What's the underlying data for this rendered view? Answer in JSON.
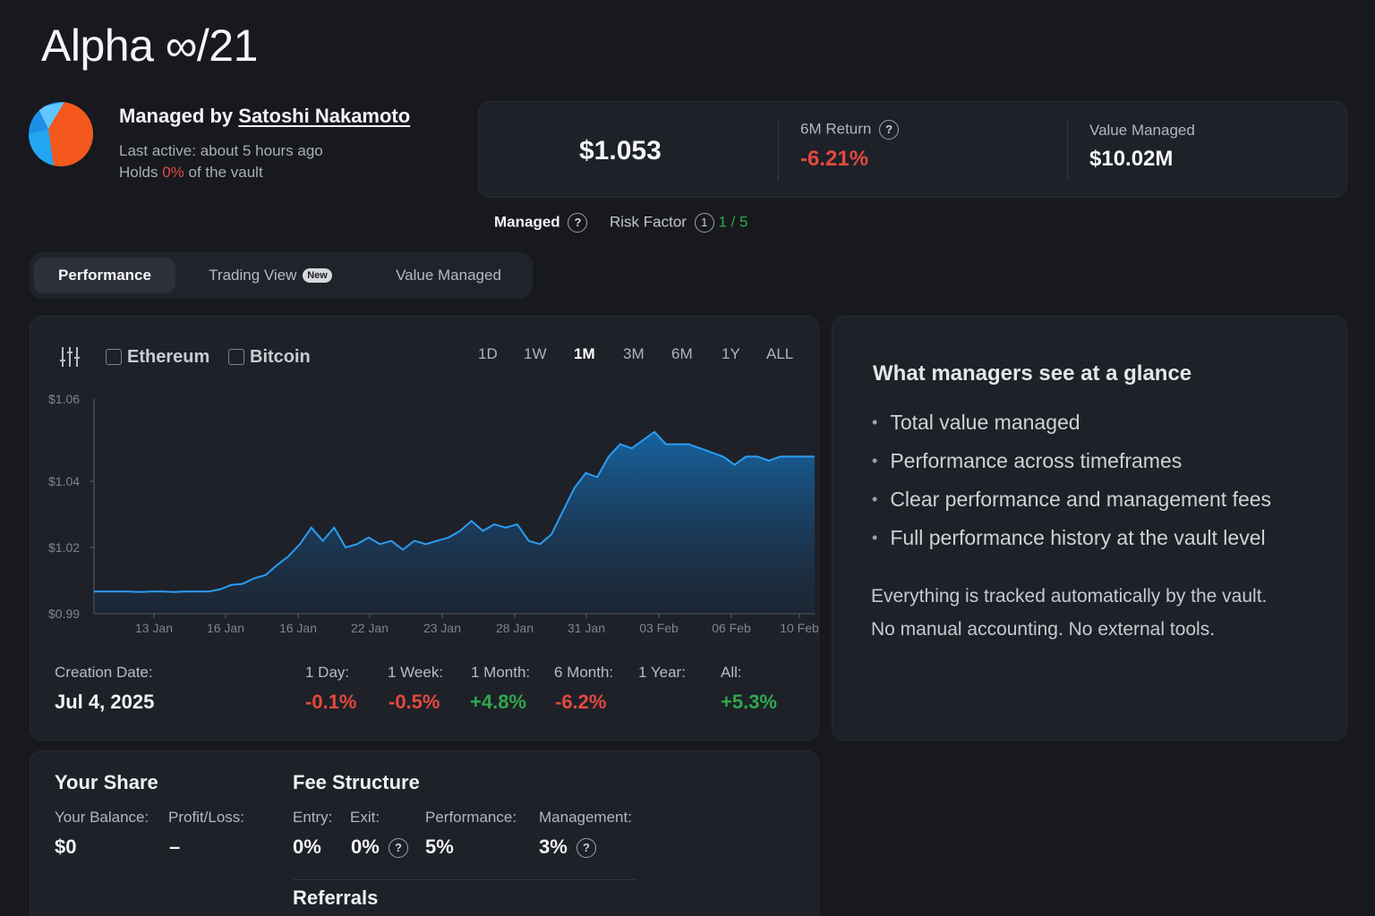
{
  "vault": {
    "title": "Alpha ∞/21"
  },
  "manager": {
    "prefix": "Managed by",
    "name": "Satoshi Nakamoto",
    "last_active": "Last active: about 5 hours ago",
    "holds_prefix": "Holds",
    "holds_value": "0%",
    "holds_suffix": "of the vault"
  },
  "stats": {
    "price": "$1.053",
    "return_label": "6M Return",
    "return_value": "-6.21%",
    "value_label": "Value Managed",
    "value_value": "$10.02M"
  },
  "badges": {
    "managed": "Managed",
    "risk_label": "Risk Factor",
    "risk_icon": "1",
    "risk_value": "1 / 5"
  },
  "tabs": [
    {
      "label": "Performance"
    },
    {
      "label": "Trading View",
      "badge": "New"
    },
    {
      "label": "Value Managed"
    }
  ],
  "chart_controls": {
    "compare": [
      "Ethereum",
      "Bitcoin"
    ],
    "ranges": [
      "1D",
      "1W",
      "1M",
      "3M",
      "6M",
      "1Y",
      "ALL"
    ],
    "selected_range": "1M"
  },
  "chart_data": {
    "type": "area",
    "x_ticks": [
      "13 Jan",
      "16 Jan",
      "16 Jan",
      "22 Jan",
      "23 Jan",
      "28 Jan",
      "31 Jan",
      "03 Feb",
      "06 Feb",
      "10 Feb"
    ],
    "y_ticks": [
      "$1.06",
      "$1.04",
      "$1.02",
      "$0.99"
    ],
    "line_color": "#2a9df4",
    "values": [
      1.0,
      1.0,
      1.0,
      1.0,
      0.9998,
      1.0,
      1.0,
      0.9998,
      1.0,
      1.0,
      1.0,
      1.001,
      1.003,
      1.0035,
      1.006,
      1.0075,
      1.012,
      1.016,
      1.021,
      1.026,
      1.022,
      1.026,
      1.02,
      1.021,
      1.023,
      1.021,
      1.022,
      1.019,
      1.022,
      1.021,
      1.022,
      1.023,
      1.025,
      1.028,
      1.025,
      1.027,
      1.026,
      1.027,
      1.022,
      1.021,
      1.024,
      1.031,
      1.038,
      1.042,
      1.041,
      1.046,
      1.049,
      1.048,
      1.05,
      1.052,
      1.049,
      1.049,
      1.049,
      1.048,
      1.047,
      1.046,
      1.044,
      1.046,
      1.046,
      1.045,
      1.046,
      1.046,
      1.046,
      1.046
    ]
  },
  "performance": {
    "creation_label": "Creation Date:",
    "creation_value": "Jul 4, 2025",
    "periods": [
      {
        "label": "1 Day:",
        "value": "-0.1%",
        "color": "#e2493f"
      },
      {
        "label": "1 Week:",
        "value": "-0.5%",
        "color": "#e2493f"
      },
      {
        "label": "1 Month:",
        "value": "+4.8%",
        "color": "#2fa84f"
      },
      {
        "label": "6 Month:",
        "value": "-6.2%",
        "color": "#e2493f"
      },
      {
        "label": "1 Year:",
        "value": "",
        "color": "#e2493f"
      },
      {
        "label": "All:",
        "value": "+5.3%",
        "color": "#2fa84f"
      }
    ]
  },
  "side": {
    "title": "What managers see at a glance",
    "bullets": [
      "Total value managed",
      "Performance across timeframes",
      "Clear performance and management fees",
      "Full performance history at the vault level"
    ],
    "note_line1": "Everything is tracked automatically by the vault.",
    "note_line2": "No manual accounting.  No external tools."
  },
  "share": {
    "title": "Your Share",
    "balance_label": "Your Balance:",
    "balance_value": "$0",
    "pl_label": "Profit/Loss:",
    "pl_value": "–"
  },
  "fees": {
    "title": "Fee Structure",
    "entry_label": "Entry:",
    "entry_value": "0%",
    "exit_label": "Exit:",
    "exit_value": "0%",
    "performance_label": "Performance:",
    "performance_value": "5%",
    "management_label": "Management:",
    "management_value": "3%"
  },
  "referrals": {
    "title": "Referrals"
  }
}
